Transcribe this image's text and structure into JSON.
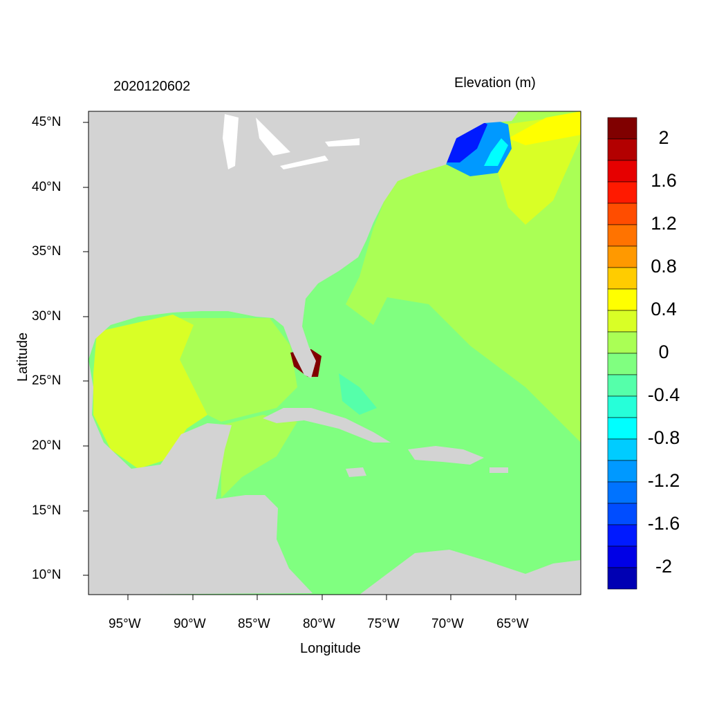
{
  "title_left": "2020120602",
  "title_right": "Elevation (m)",
  "xlabel": "Longitude",
  "ylabel": "Latitude",
  "x_ticks": [
    "95°W",
    "90°W",
    "85°W",
    "80°W",
    "75°W",
    "70°W",
    "65°W"
  ],
  "y_ticks": [
    "45°N",
    "40°N",
    "35°N",
    "30°N",
    "25°N",
    "20°N",
    "15°N",
    "10°N"
  ],
  "colorbar": {
    "labels": [
      "2",
      "1.6",
      "1.2",
      "0.8",
      "0.4",
      "0",
      "-0.4",
      "-0.8",
      "-1.2",
      "-1.6",
      "-2"
    ],
    "colors": [
      "#800000",
      "#b30000",
      "#e60000",
      "#ff1a00",
      "#ff4d00",
      "#ff7300",
      "#ff9900",
      "#ffcc00",
      "#ffff00",
      "#d9ff26",
      "#aaff55",
      "#80ff80",
      "#55ffaa",
      "#26ffd9",
      "#00ffff",
      "#00ccff",
      "#0099ff",
      "#0073ff",
      "#004dff",
      "#001aff",
      "#0000e6",
      "#0000b3"
    ]
  },
  "land_color": "#d3d3d3"
}
